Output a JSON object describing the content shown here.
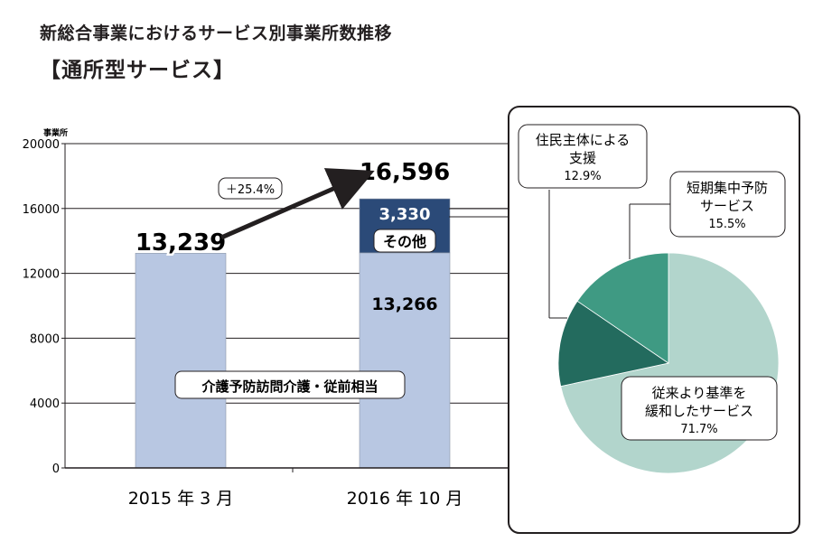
{
  "title": "新総合事業におけるサービス別事業所数推移",
  "subtitle": "【通所型サービス】",
  "colors": {
    "bar_main": "#b8c7e2",
    "bar_other": "#2b4a78",
    "pie_relaxed": "#b2d5cc",
    "pie_resident": "#236b5e",
    "pie_short": "#3f9a83"
  },
  "chart_data": [
    {
      "type": "bar",
      "stacked": true,
      "ylabel": "事業所",
      "ylim": [
        0,
        20000
      ],
      "yticks": [
        "0",
        "4000",
        "8000",
        "12000",
        "16000",
        "20000"
      ],
      "categories": [
        "2015 年 3 月",
        "2016 年 10 月"
      ],
      "series": [
        {
          "name": "介護予防訪問介護・従前相当",
          "values": [
            13239,
            13266
          ],
          "labels": [
            "",
            "13,266"
          ]
        },
        {
          "name": "その他",
          "values": [
            0,
            3330
          ],
          "labels": [
            "",
            "3,330"
          ]
        }
      ],
      "totals": [
        "13,239",
        "16,596"
      ],
      "growth_label": "＋25.4%",
      "grid": true
    },
    {
      "type": "pie",
      "slices": [
        {
          "label_line1": "従来より基準を",
          "label_line2": "緩和したサービス",
          "value": 71.7,
          "value_label": "71.7%"
        },
        {
          "label_line1": "住民主体による",
          "label_line2": "支援",
          "value": 12.9,
          "value_label": "12.9%"
        },
        {
          "label_line1": "短期集中予防",
          "label_line2": "サービス",
          "value": 15.5,
          "value_label": "15.5%"
        }
      ]
    }
  ]
}
